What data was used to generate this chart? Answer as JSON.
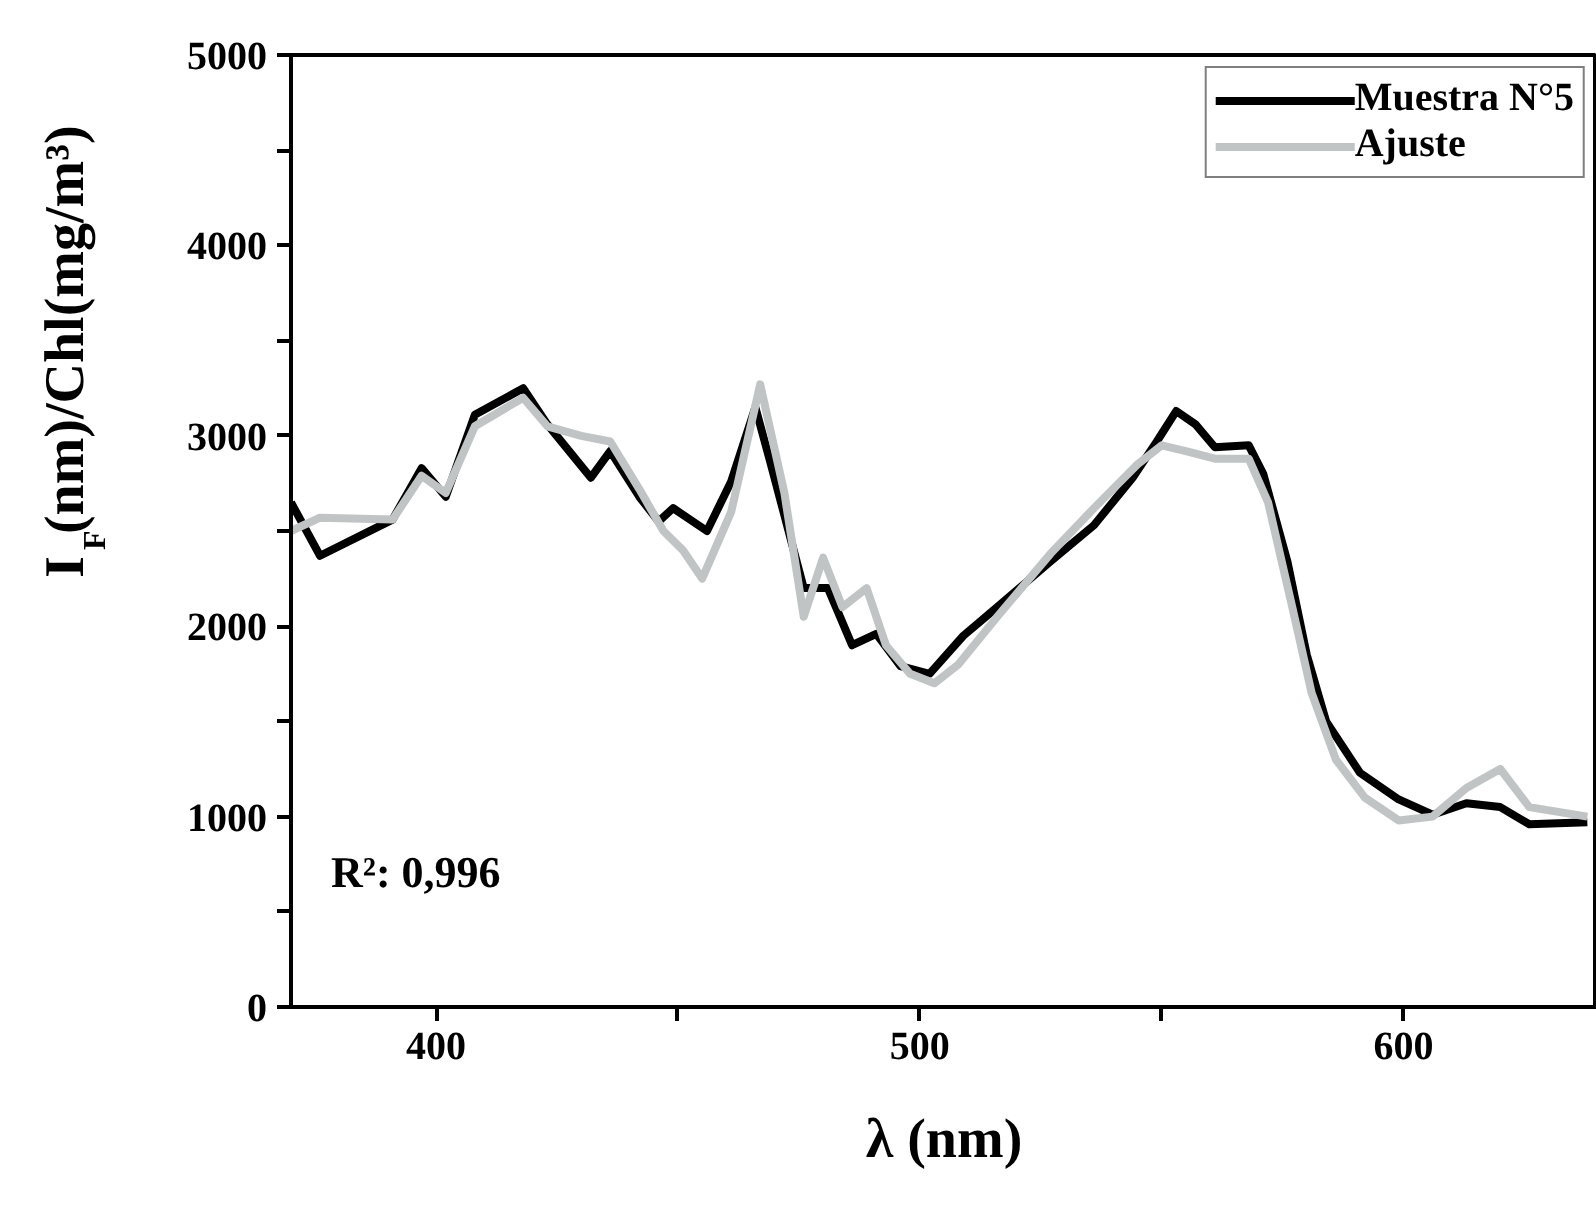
{
  "chart_data": {
    "type": "line",
    "xlabel": "λ (nm)",
    "ylabel": "I$_{F}$(nm)/Chl(mg/m³)",
    "xlim": [
      370,
      640
    ],
    "ylim": [
      0,
      5000
    ],
    "xticks": [
      400,
      {
        "value": 450,
        "label": null
      },
      500,
      {
        "value": 550,
        "label": null
      },
      600
    ],
    "yticks": [
      0,
      {
        "value": 500,
        "label": null
      },
      1000,
      {
        "value": 1500,
        "label": null
      },
      2000,
      {
        "value": 2500,
        "label": null
      },
      3000,
      {
        "value": 3500,
        "label": null
      },
      4000,
      {
        "value": 4500,
        "label": null
      },
      5000
    ],
    "grid": false,
    "legend": "top right",
    "marker": "none",
    "line_style": "solid",
    "annotations": [
      "R²: 0,996"
    ],
    "series": [
      {
        "name": "Muestra N°5",
        "color": "#000000",
        "x": [
          370,
          376,
          391,
          397,
          402,
          408,
          418,
          423,
          432,
          436,
          442,
          446,
          449,
          456,
          461,
          466,
          469,
          476,
          481,
          486,
          491,
          496,
          502,
          509,
          516,
          527,
          536,
          544,
          549,
          553,
          557,
          561,
          568,
          571,
          576,
          580,
          584,
          591,
          599,
          606,
          613,
          620,
          626,
          638
        ],
        "values": [
          2650,
          2370,
          2560,
          2830,
          2680,
          3110,
          3250,
          3060,
          2780,
          2920,
          2680,
          2550,
          2620,
          2500,
          2760,
          3150,
          2870,
          2200,
          2200,
          1900,
          1960,
          1790,
          1750,
          1950,
          2100,
          2340,
          2530,
          2780,
          2970,
          3130,
          3060,
          2940,
          2950,
          2800,
          2340,
          1850,
          1500,
          1230,
          1090,
          1010,
          1070,
          1050,
          960,
          970
        ]
      },
      {
        "name": "Ajuste",
        "color": "#c0c4c4",
        "x": [
          370,
          376,
          391,
          397,
          402,
          408,
          418,
          423,
          430,
          436,
          442,
          447,
          451,
          455,
          461,
          467,
          472,
          476,
          480,
          484,
          489,
          493,
          498,
          503,
          508,
          516,
          527,
          536,
          545,
          550,
          555,
          561,
          568,
          572,
          577,
          581,
          586,
          592,
          599,
          606,
          613,
          620,
          626,
          638
        ],
        "values": [
          2500,
          2570,
          2560,
          2790,
          2700,
          3050,
          3200,
          3050,
          3000,
          2970,
          2720,
          2500,
          2400,
          2250,
          2600,
          3270,
          2700,
          2050,
          2360,
          2100,
          2200,
          1900,
          1750,
          1700,
          1800,
          2050,
          2380,
          2620,
          2850,
          2950,
          2920,
          2880,
          2880,
          2650,
          2100,
          1650,
          1300,
          1100,
          980,
          1000,
          1150,
          1250,
          1050,
          1000
        ]
      }
    ]
  }
}
